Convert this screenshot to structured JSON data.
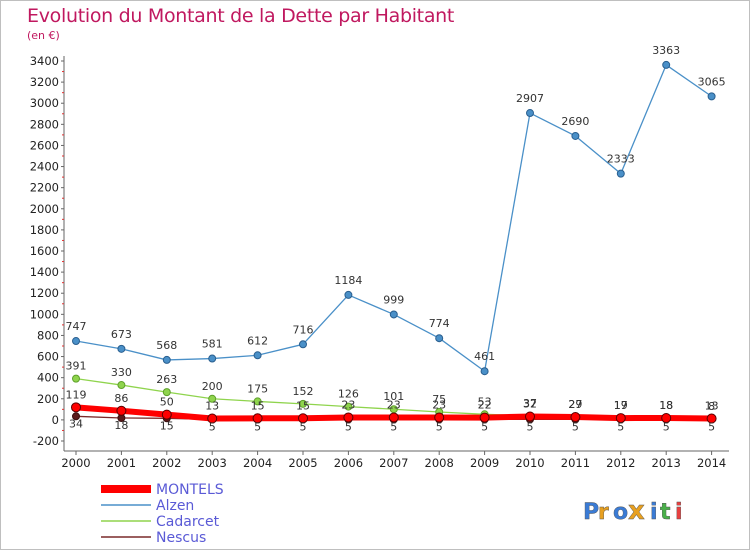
{
  "title": "Evolution du Montant de la Dette par Habitant",
  "subtitle": "(en €)",
  "brand": "Proxiti",
  "chart_data": {
    "type": "line",
    "title": "Evolution du Montant de la Dette par Habitant",
    "ylabel": "(en €)",
    "xlabel": "",
    "ylim": [
      -200,
      3400
    ],
    "yticks": [
      -200,
      0,
      200,
      400,
      600,
      800,
      1000,
      1200,
      1400,
      1600,
      1800,
      2000,
      2200,
      2400,
      2600,
      2800,
      3000,
      3200,
      3400
    ],
    "categories": [
      "2000",
      "2001",
      "2002",
      "2003",
      "2004",
      "2005",
      "2006",
      "2007",
      "2008",
      "2009",
      "2010",
      "2011",
      "2012",
      "2013",
      "2014"
    ],
    "grid": false,
    "legend": "bottom-left",
    "series": [
      {
        "name": "MONTELS",
        "color": "#ff0000",
        "values": [
          119,
          86,
          50,
          13,
          15,
          15,
          23,
          23,
          23,
          22,
          32,
          27,
          17,
          18,
          13
        ]
      },
      {
        "name": "Alzen",
        "color": "#4a90c8",
        "values": [
          747,
          673,
          568,
          581,
          612,
          716,
          1184,
          999,
          774,
          461,
          2907,
          2690,
          2333,
          3363,
          3065
        ]
      },
      {
        "name": "Cadarcet",
        "color": "#8fd44d",
        "values": [
          391,
          330,
          263,
          200,
          175,
          152,
          126,
          101,
          75,
          53,
          37,
          29,
          19,
          18,
          8
        ]
      },
      {
        "name": "Nescus",
        "color": "#7a2a2a",
        "values": [
          34,
          18,
          15,
          5,
          5,
          5,
          5,
          5,
          5,
          5,
          5,
          5,
          5,
          5,
          5
        ]
      }
    ]
  }
}
